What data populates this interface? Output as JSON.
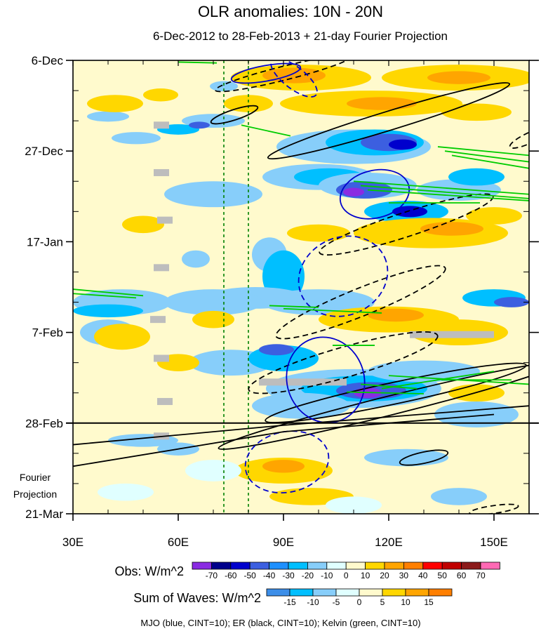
{
  "chart_data": {
    "type": "heatmap",
    "title": "OLR anomalies: 10N - 20N",
    "subtitle": "6-Dec-2012 to 28-Feb-2013 + 21-day Fourier Projection",
    "x_axis": {
      "range": [
        30,
        160
      ],
      "tick_values": [
        30,
        60,
        90,
        120,
        150
      ],
      "tick_labels": [
        "30E",
        "60E",
        "90E",
        "120E",
        "150E"
      ]
    },
    "y_axis": {
      "direction": "time, downward",
      "range_days": [
        0,
        105
      ],
      "tick_days": [
        0,
        21,
        42,
        63,
        84,
        105
      ],
      "tick_labels": [
        "6-Dec",
        "27-Dec",
        "17-Jan",
        "7-Feb",
        "28-Feb",
        "21-Mar"
      ]
    },
    "forecast_boundary_day": 84,
    "projection_label": [
      "Fourier",
      "Projection"
    ],
    "reference_longitudes": [
      73,
      80
    ],
    "obs_legend": {
      "label": "Obs: W/m^2",
      "ticks": [
        "-70",
        "-60",
        "-50",
        "-40",
        "-30",
        "-20",
        "-10",
        "0",
        "10",
        "20",
        "30",
        "40",
        "50",
        "60",
        "70"
      ],
      "colors": [
        "#8a2be2",
        "#00008b",
        "#0000cd",
        "#3c5fe0",
        "#1e90ff",
        "#00bfff",
        "#87cefa",
        "#e0ffff",
        "#fffacd",
        "#ffd700",
        "#ffa500",
        "#ff7f00",
        "#ff0000",
        "#c00000",
        "#8b1a1a",
        "#ff69b4"
      ]
    },
    "waves_legend": {
      "label": "Sum of Waves: W/m^2",
      "ticks": [
        "-15",
        "-10",
        "-5",
        "0",
        "5",
        "10",
        "15"
      ],
      "colors": [
        "#3c8ee8",
        "#00bfff",
        "#87cefa",
        "#e0ffff",
        "#fffacd",
        "#ffd700",
        "#ffa500",
        "#ff7f00"
      ]
    },
    "footer": "MJO (blue, CINT=10); ER (black, CINT=10); Kelvin (green, CINT=10)",
    "contours": {
      "mjo_color": "#0000cd",
      "er_color": "#000000",
      "kelvin_color": "#00cc00"
    },
    "missing_color": "#bdbdbd"
  }
}
